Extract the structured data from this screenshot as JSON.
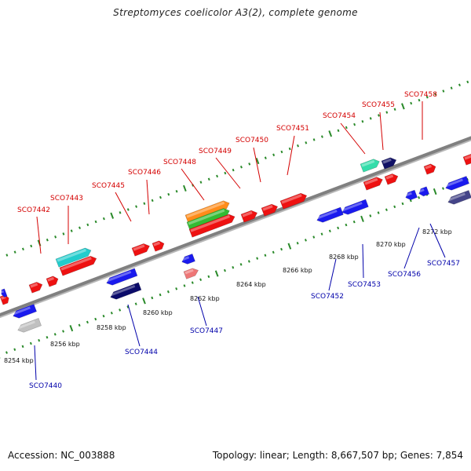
{
  "title": "Streptomyces coelicolor A3(2), complete genome",
  "footer": {
    "accession": "Accession: NC_003888",
    "stats": "Topology: linear; Length: 8,667,507 bp; Genes: 7,854"
  },
  "colors": {
    "forward_label": "#d40000",
    "reverse_label": "#0000aa",
    "backbone": "#888888",
    "tick": "#2a8a2a"
  },
  "kbp_labels": [
    "8254 kbp",
    "8256 kbp",
    "8258 kbp",
    "8260 kbp",
    "8262 kbp",
    "8264 kbp",
    "8266 kbp",
    "8268 kbp",
    "8270 kbp",
    "8272 kbp"
  ],
  "forward_genes": [
    "SCO7442",
    "SCO7443",
    "SCO7445",
    "SCO7446",
    "SCO7448",
    "SCO7449",
    "SCO7450",
    "SCO7451",
    "SCO7454",
    "SCO7455",
    "SCO7458"
  ],
  "reverse_genes": [
    "SCO7440",
    "SCO7444",
    "SCO7447",
    "SCO7452",
    "SCO7453",
    "SCO7456",
    "SCO7457"
  ]
}
